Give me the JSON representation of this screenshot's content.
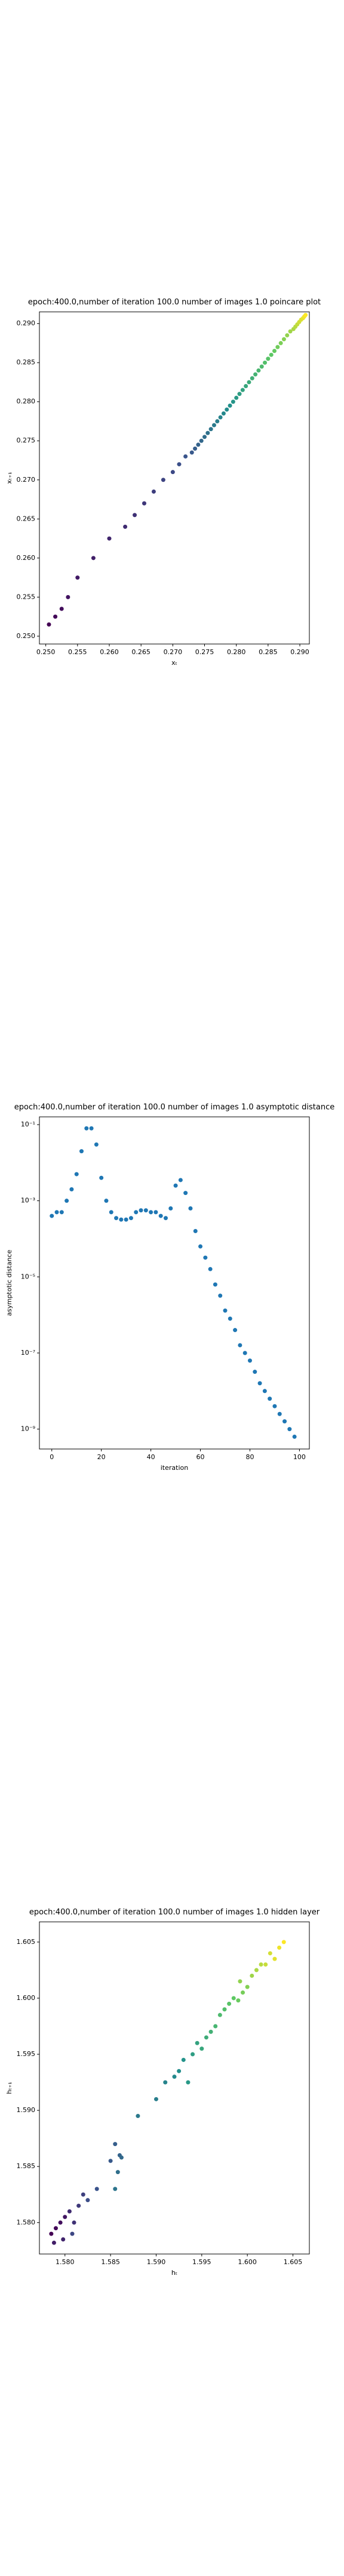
{
  "chart_data": [
    {
      "type": "scatter",
      "title": "epoch:400.0,number of iteration 100.0 number of images 1.0 poincare plot",
      "xlabel": "xₜ",
      "ylabel": "xₜ₊₁",
      "colormap": "viridis",
      "x": [
        0.2505,
        0.2515,
        0.2525,
        0.2535,
        0.255,
        0.2575,
        0.26,
        0.2625,
        0.264,
        0.2655,
        0.267,
        0.2685,
        0.27,
        0.271,
        0.272,
        0.273,
        0.2735,
        0.274,
        0.2745,
        0.275,
        0.2755,
        0.276,
        0.2765,
        0.277,
        0.2775,
        0.278,
        0.2785,
        0.279,
        0.2795,
        0.28,
        0.2805,
        0.281,
        0.2815,
        0.282,
        0.2825,
        0.283,
        0.2835,
        0.284,
        0.2845,
        0.285,
        0.2855,
        0.286,
        0.2865,
        0.287,
        0.2875,
        0.288,
        0.2885,
        0.289,
        0.2893,
        0.2896,
        0.2899,
        0.2902,
        0.2905,
        0.2907,
        0.2909
      ],
      "values": [
        0.2515,
        0.2525,
        0.2535,
        0.255,
        0.2575,
        0.26,
        0.2625,
        0.264,
        0.2655,
        0.267,
        0.2685,
        0.27,
        0.271,
        0.272,
        0.273,
        0.2735,
        0.274,
        0.2745,
        0.275,
        0.2755,
        0.276,
        0.2765,
        0.277,
        0.2775,
        0.278,
        0.2785,
        0.279,
        0.2795,
        0.28,
        0.2805,
        0.281,
        0.2815,
        0.282,
        0.2825,
        0.283,
        0.2835,
        0.284,
        0.2845,
        0.285,
        0.2855,
        0.286,
        0.2865,
        0.287,
        0.2875,
        0.288,
        0.2885,
        0.289,
        0.2893,
        0.2896,
        0.2899,
        0.2902,
        0.2905,
        0.2907,
        0.2909,
        0.2911
      ],
      "xlim": [
        0.249,
        0.2915
      ],
      "ylim": [
        0.249,
        0.2915
      ],
      "xticks": [
        {
          "value": 0.25,
          "label": "0.250"
        },
        {
          "value": 0.255,
          "label": "0.255"
        },
        {
          "value": 0.26,
          "label": "0.260"
        },
        {
          "value": 0.265,
          "label": "0.265"
        },
        {
          "value": 0.27,
          "label": "0.270"
        },
        {
          "value": 0.275,
          "label": "0.275"
        },
        {
          "value": 0.28,
          "label": "0.280"
        },
        {
          "value": 0.285,
          "label": "0.285"
        },
        {
          "value": 0.29,
          "label": "0.290"
        }
      ],
      "yticks": [
        {
          "value": 0.25,
          "label": "0.250"
        },
        {
          "value": 0.255,
          "label": "0.255"
        },
        {
          "value": 0.26,
          "label": "0.260"
        },
        {
          "value": 0.265,
          "label": "0.265"
        },
        {
          "value": 0.27,
          "label": "0.270"
        },
        {
          "value": 0.275,
          "label": "0.275"
        },
        {
          "value": 0.28,
          "label": "0.280"
        },
        {
          "value": 0.285,
          "label": "0.285"
        },
        {
          "value": 0.29,
          "label": "0.290"
        }
      ]
    },
    {
      "type": "scatter",
      "title": "epoch:400.0,number of iteration 100.0  number of images 1.0 asymptotic distance",
      "xlabel": "iteration",
      "ylabel": "asymptotic distance",
      "color": "#1f77b4",
      "ylog": true,
      "x": [
        0,
        2,
        4,
        6,
        8,
        10,
        12,
        14,
        16,
        18,
        20,
        22,
        24,
        26,
        28,
        30,
        32,
        34,
        36,
        38,
        40,
        42,
        44,
        46,
        48,
        50,
        52,
        54,
        56,
        58,
        60,
        62,
        64,
        66,
        68,
        70,
        72,
        74,
        76,
        78,
        80,
        82,
        84,
        86,
        88,
        90,
        92,
        94,
        96,
        98
      ],
      "values": [
        0.0004,
        0.0005,
        0.0005,
        0.001,
        0.002,
        0.005,
        0.02,
        0.08,
        0.08,
        0.03,
        0.004,
        0.001,
        0.0005,
        0.00035,
        0.00032,
        0.00032,
        0.00035,
        0.0005,
        0.00056,
        0.00056,
        0.0005,
        0.0005,
        0.0004,
        0.00035,
        0.00063,
        0.0025,
        0.0035,
        0.0016,
        0.00063,
        0.00016,
        6.3e-05,
        3.2e-05,
        1.6e-05,
        6.3e-06,
        3.2e-06,
        1.3e-06,
        8e-07,
        4e-07,
        1.6e-07,
        1e-07,
        6.3e-08,
        3.2e-08,
        1.6e-08,
        1e-08,
        6.3e-09,
        4e-09,
        2.5e-09,
        1.6e-09,
        1e-09,
        6.3e-10
      ],
      "xlim": [
        -5,
        104
      ],
      "ylim": [
        3e-10,
        0.16
      ],
      "xticks": [
        0,
        20,
        40,
        60,
        80,
        100
      ],
      "yticks": [
        {
          "value": 1e-09,
          "label": "10⁻⁹"
        },
        {
          "value": 1e-07,
          "label": "10⁻⁷"
        },
        {
          "value": 1e-05,
          "label": "10⁻⁵"
        },
        {
          "value": 0.001,
          "label": "10⁻³"
        },
        {
          "value": 0.1,
          "label": "10⁻¹"
        }
      ]
    },
    {
      "type": "scatter",
      "title": "epoch:400.0,number of iteration 100.0  number of images 1.0 hidden layer",
      "xlabel": "hₜ",
      "ylabel": "hₜ₊₁",
      "colormap": "viridis",
      "x": [
        1.5785,
        1.579,
        1.5795,
        1.58,
        1.5788,
        1.5798,
        1.5805,
        1.581,
        1.5815,
        1.582,
        1.5808,
        1.5825,
        1.5835,
        1.585,
        1.5855,
        1.586,
        1.5862,
        1.5858,
        1.5855,
        1.588,
        1.59,
        1.591,
        1.592,
        1.5925,
        1.593,
        1.5935,
        1.594,
        1.5945,
        1.595,
        1.5955,
        1.596,
        1.5965,
        1.597,
        1.5975,
        1.598,
        1.5985,
        1.599,
        1.5995,
        1.6,
        1.5992,
        1.6005,
        1.601,
        1.6015,
        1.602,
        1.6025,
        1.603,
        1.6035,
        1.604
      ],
      "values": [
        1.579,
        1.5795,
        1.58,
        1.5805,
        1.5782,
        1.5785,
        1.581,
        1.58,
        1.5815,
        1.5825,
        1.579,
        1.582,
        1.583,
        1.5855,
        1.587,
        1.586,
        1.5858,
        1.5845,
        1.583,
        1.5895,
        1.591,
        1.5925,
        1.593,
        1.5935,
        1.5945,
        1.5925,
        1.595,
        1.596,
        1.5955,
        1.5965,
        1.597,
        1.5975,
        1.5985,
        1.599,
        1.5995,
        1.6,
        1.5998,
        1.6005,
        1.601,
        1.6015,
        1.602,
        1.6025,
        1.603,
        1.603,
        1.604,
        1.6035,
        1.6045,
        1.605
      ],
      "xlim": [
        1.5772,
        1.6068
      ],
      "ylim": [
        1.5772,
        1.6068
      ],
      "xticks": [
        {
          "value": 1.58,
          "label": "1.580"
        },
        {
          "value": 1.585,
          "label": "1.585"
        },
        {
          "value": 1.59,
          "label": "1.590"
        },
        {
          "value": 1.595,
          "label": "1.595"
        },
        {
          "value": 1.6,
          "label": "1.600"
        },
        {
          "value": 1.605,
          "label": "1.605"
        }
      ],
      "yticks": [
        {
          "value": 1.58,
          "label": "1.580"
        },
        {
          "value": 1.585,
          "label": "1.585"
        },
        {
          "value": 1.59,
          "label": "1.590"
        },
        {
          "value": 1.595,
          "label": "1.595"
        },
        {
          "value": 1.6,
          "label": "1.600"
        },
        {
          "value": 1.605,
          "label": "1.605"
        }
      ]
    }
  ]
}
